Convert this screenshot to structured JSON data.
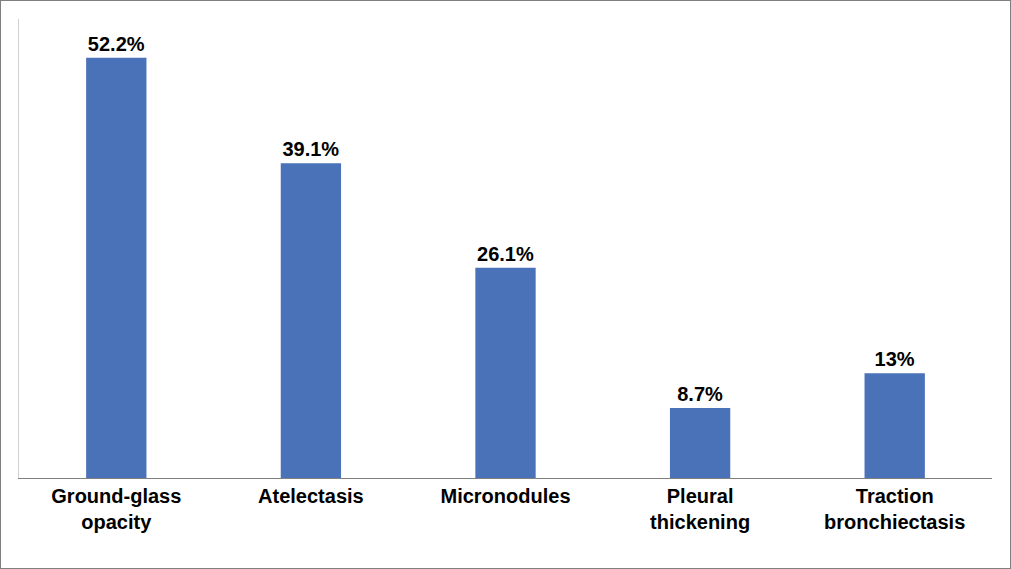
{
  "chart_data": {
    "type": "bar",
    "categories": [
      "Ground-glass opacity",
      "Atelectasis",
      "Micronodules",
      "Pleural thickening",
      "Traction bronchiectasis"
    ],
    "values": [
      52.2,
      39.1,
      26.1,
      8.7,
      13
    ],
    "value_labels": [
      "52.2%",
      "39.1%",
      "26.1%",
      "8.7%",
      "13%"
    ],
    "color": "#4a72b8",
    "ylim": [
      0,
      57
    ],
    "grid": false,
    "data_labels": true,
    "tick_labels": "x"
  }
}
